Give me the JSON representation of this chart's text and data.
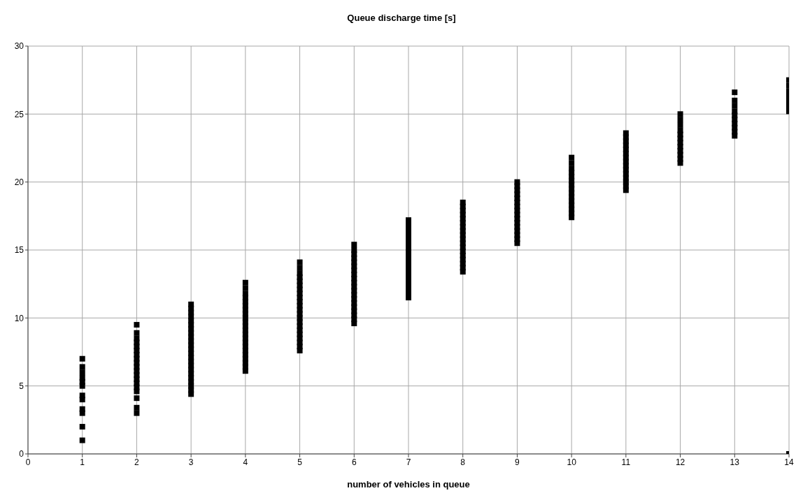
{
  "chart_data": {
    "type": "scatter",
    "title": "Queue discharge time [s]",
    "xlabel": "number of vehicles in queue",
    "xlim": [
      0,
      14
    ],
    "xticks": [
      0,
      1,
      2,
      3,
      4,
      5,
      6,
      7,
      8,
      9,
      10,
      11,
      12,
      13,
      14
    ],
    "ylim": [
      0,
      30
    ],
    "yticks": [
      0,
      5,
      10,
      15,
      20,
      25,
      30
    ],
    "grid": true,
    "marker": "square",
    "series": [
      {
        "color": "#000000",
        "x": [
          1,
          1,
          1,
          1,
          1,
          1,
          1,
          1,
          1,
          1,
          1,
          1
        ],
        "values": [
          1.0,
          2.0,
          3.0,
          3.3,
          4.0,
          4.3,
          5.0,
          5.3,
          5.6,
          6.0,
          6.4,
          7.0
        ]
      },
      {
        "color": "#000000",
        "x": [
          2,
          2,
          2,
          2,
          2,
          2,
          2,
          2,
          2,
          2,
          2,
          2,
          2,
          2,
          2,
          2,
          2,
          2,
          2
        ],
        "values": [
          3.0,
          3.4,
          4.1,
          4.6,
          4.9,
          5.2,
          5.5,
          5.8,
          6.1,
          6.4,
          6.7,
          7.0,
          7.3,
          7.6,
          7.9,
          8.2,
          8.5,
          8.9,
          9.5
        ]
      },
      {
        "color": "#000000",
        "x": [
          3,
          3,
          3,
          3,
          3,
          3,
          3,
          3,
          3,
          3,
          3,
          3,
          3,
          3,
          3,
          3,
          3,
          3,
          3,
          3,
          3,
          3,
          3
        ],
        "values": [
          4.4,
          4.7,
          5.0,
          5.3,
          5.6,
          5.9,
          6.2,
          6.5,
          6.8,
          7.1,
          7.4,
          7.7,
          8.0,
          8.3,
          8.6,
          8.9,
          9.2,
          9.5,
          9.8,
          10.1,
          10.4,
          10.7,
          11.0
        ]
      },
      {
        "color": "#000000",
        "x": [
          4,
          4,
          4,
          4,
          4,
          4,
          4,
          4,
          4,
          4,
          4,
          4,
          4,
          4,
          4,
          4,
          4,
          4,
          4,
          4,
          4,
          4
        ],
        "values": [
          6.1,
          6.4,
          6.7,
          7.0,
          7.3,
          7.6,
          7.9,
          8.2,
          8.5,
          8.8,
          9.1,
          9.4,
          9.7,
          10.0,
          10.3,
          10.6,
          10.9,
          11.2,
          11.5,
          11.8,
          12.2,
          12.6
        ]
      },
      {
        "color": "#000000",
        "x": [
          5,
          5,
          5,
          5,
          5,
          5,
          5,
          5,
          5,
          5,
          5,
          5,
          5,
          5,
          5,
          5,
          5,
          5,
          5,
          5,
          5,
          5
        ],
        "values": [
          7.6,
          7.9,
          8.2,
          8.5,
          8.8,
          9.1,
          9.4,
          9.7,
          10.0,
          10.3,
          10.6,
          10.9,
          11.2,
          11.5,
          11.8,
          12.1,
          12.4,
          12.7,
          13.0,
          13.3,
          13.7,
          14.1
        ]
      },
      {
        "color": "#000000",
        "x": [
          6,
          6,
          6,
          6,
          6,
          6,
          6,
          6,
          6,
          6,
          6,
          6,
          6,
          6,
          6,
          6,
          6,
          6,
          6,
          6
        ],
        "values": [
          9.6,
          9.9,
          10.2,
          10.5,
          10.8,
          11.1,
          11.4,
          11.7,
          12.0,
          12.3,
          12.6,
          12.9,
          13.2,
          13.5,
          13.8,
          14.1,
          14.4,
          14.7,
          15.0,
          15.4
        ]
      },
      {
        "color": "#000000",
        "x": [
          7,
          7,
          7,
          7,
          7,
          7,
          7,
          7,
          7,
          7,
          7,
          7,
          7,
          7,
          7,
          7,
          7,
          7,
          7,
          7
        ],
        "values": [
          11.5,
          11.8,
          12.1,
          12.4,
          12.7,
          13.0,
          13.3,
          13.6,
          13.9,
          14.2,
          14.5,
          14.8,
          15.1,
          15.4,
          15.7,
          16.0,
          16.3,
          16.6,
          16.9,
          17.2
        ]
      },
      {
        "color": "#000000",
        "x": [
          8,
          8,
          8,
          8,
          8,
          8,
          8,
          8,
          8,
          8,
          8,
          8,
          8,
          8,
          8,
          8,
          8,
          8
        ],
        "values": [
          13.4,
          13.7,
          14.0,
          14.3,
          14.6,
          14.9,
          15.2,
          15.5,
          15.8,
          16.1,
          16.4,
          16.7,
          17.0,
          17.3,
          17.6,
          17.9,
          18.2,
          18.5
        ]
      },
      {
        "color": "#000000",
        "x": [
          9,
          9,
          9,
          9,
          9,
          9,
          9,
          9,
          9,
          9,
          9,
          9,
          9,
          9,
          9,
          9
        ],
        "values": [
          15.5,
          15.8,
          16.1,
          16.4,
          16.7,
          17.0,
          17.3,
          17.6,
          17.9,
          18.2,
          18.5,
          18.8,
          19.1,
          19.4,
          19.7,
          20.0
        ]
      },
      {
        "color": "#000000",
        "x": [
          10,
          10,
          10,
          10,
          10,
          10,
          10,
          10,
          10,
          10,
          10,
          10,
          10,
          10,
          10
        ],
        "values": [
          17.4,
          17.7,
          18.0,
          18.3,
          18.6,
          18.9,
          19.2,
          19.5,
          19.8,
          20.1,
          20.4,
          20.7,
          21.0,
          21.4,
          21.8
        ]
      },
      {
        "color": "#000000",
        "x": [
          11,
          11,
          11,
          11,
          11,
          11,
          11,
          11,
          11,
          11,
          11,
          11,
          11,
          11,
          11
        ],
        "values": [
          19.4,
          19.7,
          20.0,
          20.3,
          20.6,
          20.9,
          21.2,
          21.5,
          21.8,
          22.1,
          22.4,
          22.7,
          23.0,
          23.3,
          23.6
        ]
      },
      {
        "color": "#000000",
        "x": [
          12,
          12,
          12,
          12,
          12,
          12,
          12,
          12,
          12,
          12,
          12,
          12
        ],
        "values": [
          21.4,
          21.7,
          22.0,
          22.3,
          22.6,
          22.9,
          23.2,
          23.5,
          23.8,
          24.2,
          24.6,
          25.0
        ]
      },
      {
        "color": "#000000",
        "x": [
          13,
          13,
          13,
          13,
          13,
          13,
          13,
          13,
          13,
          13
        ],
        "values": [
          23.4,
          23.7,
          24.0,
          24.3,
          24.6,
          24.9,
          25.2,
          25.6,
          26.0,
          26.6
        ]
      },
      {
        "color": "#000000",
        "x": [
          14,
          14,
          14,
          14,
          14,
          14,
          14,
          14,
          14
        ],
        "values": [
          0,
          25.2,
          25.5,
          25.8,
          26.1,
          26.4,
          26.7,
          27.1,
          27.5
        ]
      }
    ]
  }
}
